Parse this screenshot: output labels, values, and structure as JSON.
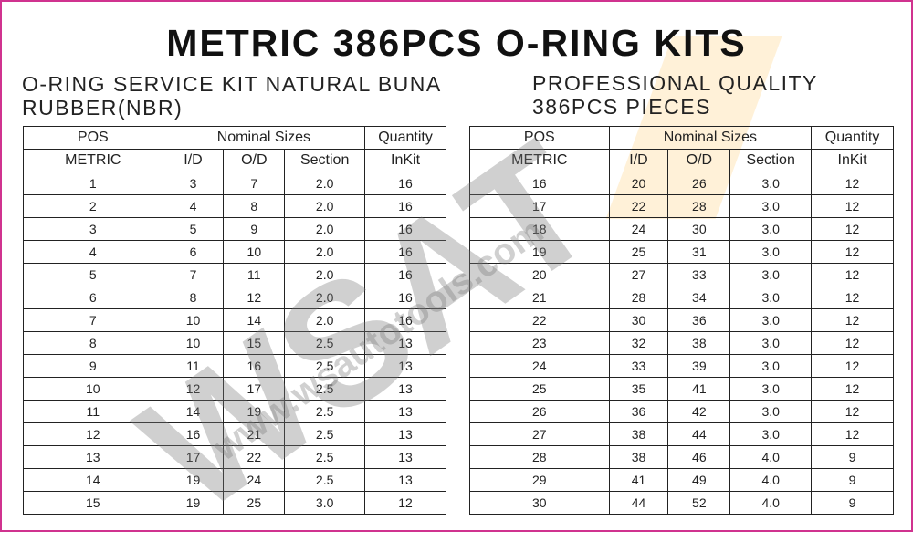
{
  "title": "METRIC 386PCS O-RING KITS",
  "subtitle_left": [
    "O-RING SERVICE KIT NATURAL BUNA",
    "RUBBER(NBR)"
  ],
  "subtitle_right": [
    "PROFESSIONAL QUALITY",
    "386PCS  PIECES"
  ],
  "watermark": {
    "logo": "WSAT",
    "url": "www.wsautotools.com"
  },
  "colors": {
    "border": "#d0338f"
  },
  "headers": {
    "pos": "POS",
    "nominal": "Nominal Sizes",
    "quantity": "Quantity",
    "metric": "METRIC",
    "id": "I/D",
    "od": "O/D",
    "section": "Section",
    "inkit": "InKit"
  },
  "left_rows": [
    [
      "1",
      "3",
      "7",
      "2.0",
      "16"
    ],
    [
      "2",
      "4",
      "8",
      "2.0",
      "16"
    ],
    [
      "3",
      "5",
      "9",
      "2.0",
      "16"
    ],
    [
      "4",
      "6",
      "10",
      "2.0",
      "16"
    ],
    [
      "5",
      "7",
      "11",
      "2.0",
      "16"
    ],
    [
      "6",
      "8",
      "12",
      "2.0",
      "16"
    ],
    [
      "7",
      "10",
      "14",
      "2.0",
      "16"
    ],
    [
      "8",
      "10",
      "15",
      "2.5",
      "13"
    ],
    [
      "9",
      "11",
      "16",
      "2.5",
      "13"
    ],
    [
      "10",
      "12",
      "17",
      "2.5",
      "13"
    ],
    [
      "11",
      "14",
      "19",
      "2.5",
      "13"
    ],
    [
      "12",
      "16",
      "21",
      "2.5",
      "13"
    ],
    [
      "13",
      "17",
      "22",
      "2.5",
      "13"
    ],
    [
      "14",
      "19",
      "24",
      "2.5",
      "13"
    ],
    [
      "15",
      "19",
      "25",
      "3.0",
      "12"
    ]
  ],
  "right_rows": [
    [
      "16",
      "20",
      "26",
      "3.0",
      "12"
    ],
    [
      "17",
      "22",
      "28",
      "3.0",
      "12"
    ],
    [
      "18",
      "24",
      "30",
      "3.0",
      "12"
    ],
    [
      "19",
      "25",
      "31",
      "3.0",
      "12"
    ],
    [
      "20",
      "27",
      "33",
      "3.0",
      "12"
    ],
    [
      "21",
      "28",
      "34",
      "3.0",
      "12"
    ],
    [
      "22",
      "30",
      "36",
      "3.0",
      "12"
    ],
    [
      "23",
      "32",
      "38",
      "3.0",
      "12"
    ],
    [
      "24",
      "33",
      "39",
      "3.0",
      "12"
    ],
    [
      "25",
      "35",
      "41",
      "3.0",
      "12"
    ],
    [
      "26",
      "36",
      "42",
      "3.0",
      "12"
    ],
    [
      "27",
      "38",
      "44",
      "3.0",
      "12"
    ],
    [
      "28",
      "38",
      "46",
      "4.0",
      "9"
    ],
    [
      "29",
      "41",
      "49",
      "4.0",
      "9"
    ],
    [
      "30",
      "44",
      "52",
      "4.0",
      "9"
    ]
  ]
}
